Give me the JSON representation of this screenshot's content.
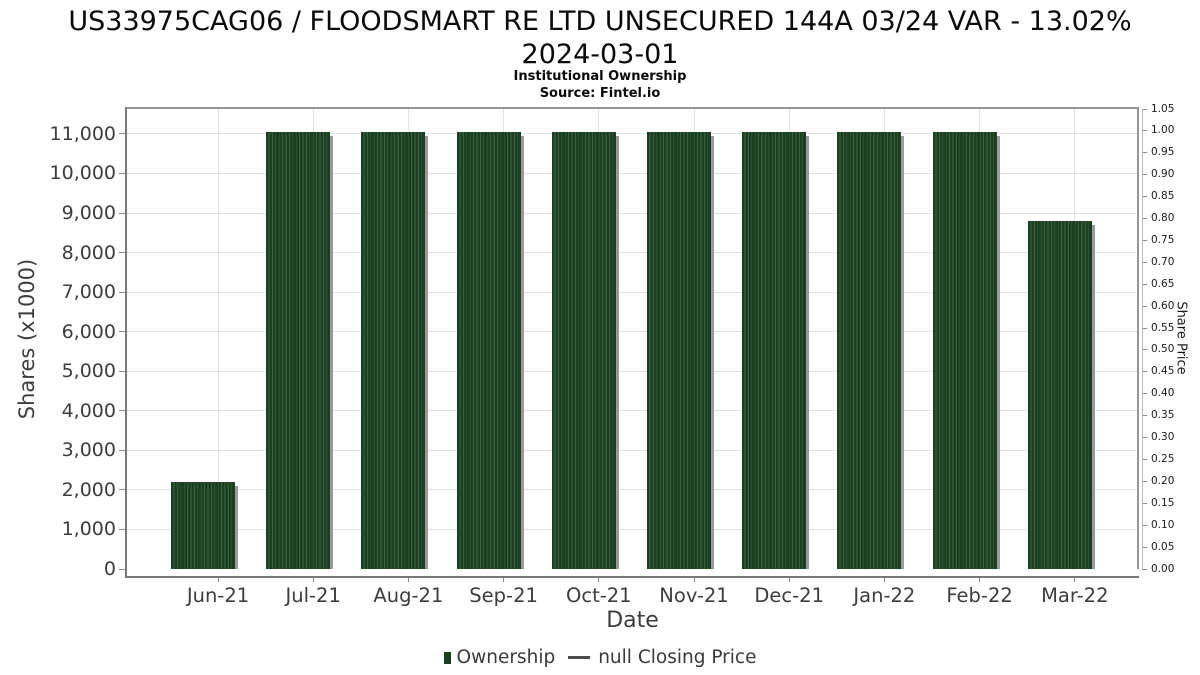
{
  "header": {
    "title_line1": "US33975CAG06 / FLOODSMART RE LTD UNSECURED 144A 03/24 VAR - 13.02%",
    "title_line2": "2024-03-01",
    "subtitle": "Institutional Ownership",
    "source": "Source: Fintel.io"
  },
  "axes": {
    "x": {
      "label": "Date",
      "ticks": [
        "Jun-21",
        "Jul-21",
        "Aug-21",
        "Sep-21",
        "Oct-21",
        "Nov-21",
        "Dec-21",
        "Jan-22",
        "Feb-22",
        "Mar-22"
      ]
    },
    "left": {
      "label": "Shares (x1000)",
      "ticks": [
        "0",
        "1,000",
        "2,000",
        "3,000",
        "4,000",
        "5,000",
        "6,000",
        "7,000",
        "8,000",
        "9,000",
        "10,000",
        "11,000"
      ]
    },
    "right": {
      "label": "Share Price",
      "ticks": [
        "0.00",
        "0.05",
        "0.10",
        "0.15",
        "0.20",
        "0.25",
        "0.30",
        "0.35",
        "0.40",
        "0.45",
        "0.50",
        "0.55",
        "0.60",
        "0.65",
        "0.70",
        "0.75",
        "0.80",
        "0.85",
        "0.90",
        "0.95",
        "1.00",
        "1.05"
      ]
    }
  },
  "legend": {
    "items": [
      {
        "label": "Ownership",
        "type": "bar",
        "color": "#1b4021"
      },
      {
        "label": "null Closing Price",
        "type": "line",
        "color": "#4d4d4d"
      }
    ]
  },
  "chart_data": {
    "type": "bar",
    "title": "US33975CAG06 / FLOODSMART RE LTD UNSECURED 144A 03/24 VAR - 13.02% 2024-03-01",
    "subtitle": "Institutional Ownership",
    "source": "Source: Fintel.io",
    "xlabel": "Date",
    "ylabel": "Shares (x1000)",
    "ylabel_right": "Share Price",
    "categories": [
      "Jun-21",
      "Jul-21",
      "Aug-21",
      "Sep-21",
      "Oct-21",
      "Nov-21",
      "Dec-21",
      "Jan-22",
      "Feb-22",
      "Mar-22"
    ],
    "series": [
      {
        "name": "Ownership",
        "axis": "left",
        "units": "shares x1000",
        "values": [
          2200,
          11050,
          11050,
          11050,
          11050,
          11050,
          11050,
          11050,
          11050,
          8800
        ]
      },
      {
        "name": "null Closing Price",
        "axis": "right",
        "units": "share price",
        "values": []
      }
    ],
    "ylim_left": [
      0,
      11630
    ],
    "yticks_left": [
      0,
      1000,
      2000,
      3000,
      4000,
      5000,
      6000,
      7000,
      8000,
      9000,
      10000,
      11000
    ],
    "ylim_right": [
      0,
      1.05
    ],
    "yticks_right": [
      0,
      0.05,
      0.1,
      0.15,
      0.2,
      0.25,
      0.3,
      0.35,
      0.4,
      0.45,
      0.5,
      0.55,
      0.6,
      0.65,
      0.7,
      0.75,
      0.8,
      0.85,
      0.9,
      0.95,
      1.0,
      1.05
    ],
    "grid": true,
    "legend_position": "bottom",
    "style": {
      "bar_color": "#1b4021",
      "bar_stripe_color": "#3f5f45",
      "bar_shadow_color": "#9a9a9a",
      "gridline_color": "#e2e2e2",
      "spine_color": "#8a8a8a"
    }
  }
}
